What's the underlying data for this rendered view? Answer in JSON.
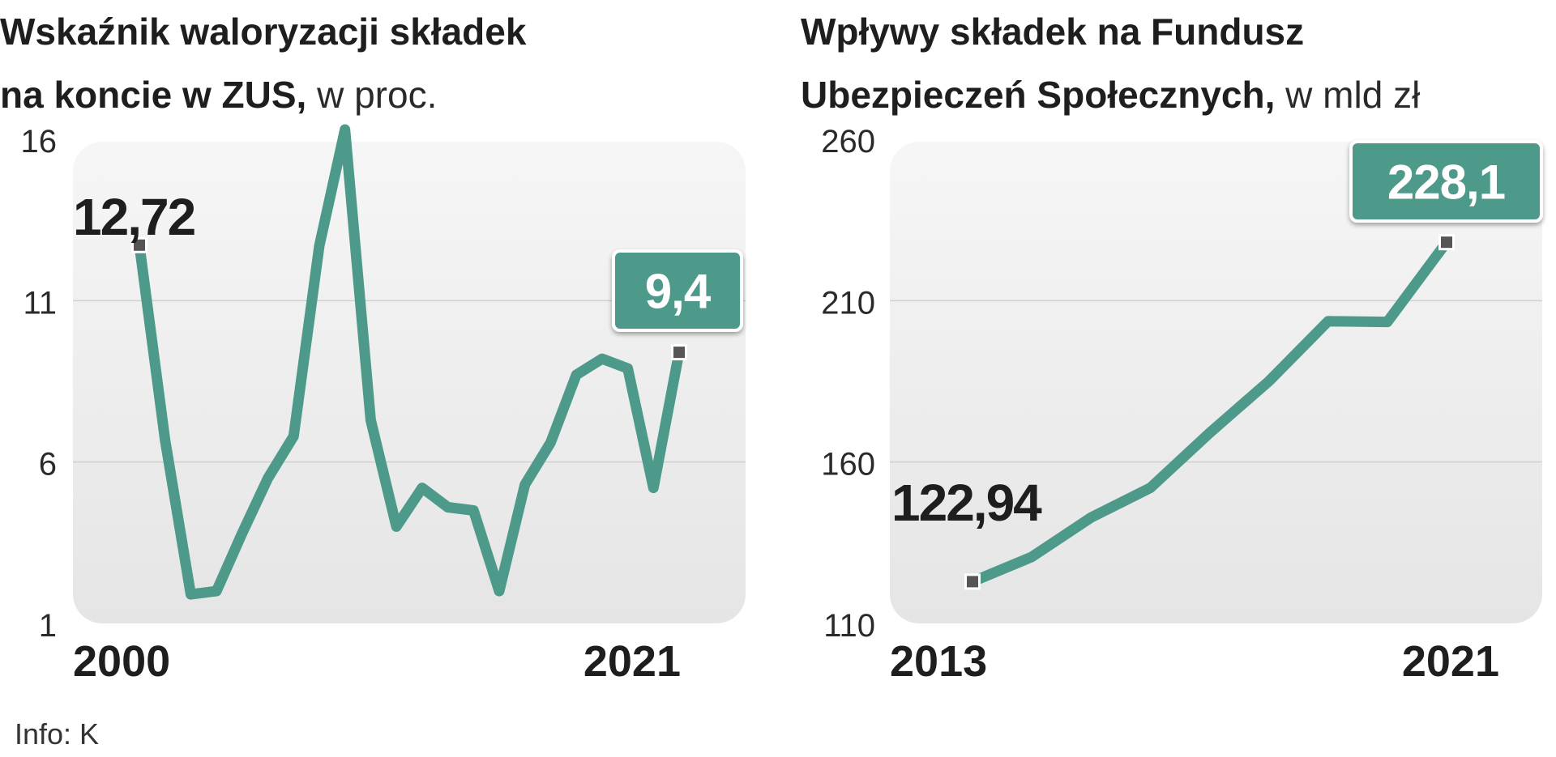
{
  "source": "Info: K",
  "colors": {
    "line": "#4e9a8a",
    "marker": "#555555",
    "panel_top": "#f6f6f6",
    "panel_bottom": "#e5e5e5",
    "grid": "#d0d0d0"
  },
  "chart_data": [
    {
      "type": "line",
      "title": "Wskaźnik waloryzacji składek na koncie w ZUS,",
      "title_line1": "Wskaźnik waloryzacji składek",
      "title_line2": "na koncie w ZUS,",
      "unit": "w proc.",
      "x": [
        2000,
        2001,
        2002,
        2003,
        2004,
        2005,
        2006,
        2007,
        2008,
        2009,
        2010,
        2011,
        2012,
        2013,
        2014,
        2015,
        2016,
        2017,
        2018,
        2019,
        2020,
        2021
      ],
      "values": [
        12.72,
        6.68,
        1.9,
        2.0,
        3.8,
        5.5,
        6.8,
        12.7,
        16.3,
        7.3,
        4.0,
        5.2,
        4.6,
        4.5,
        2.0,
        5.3,
        6.6,
        8.7,
        9.2,
        8.9,
        5.2,
        9.4
      ],
      "ylim": [
        1,
        16
      ],
      "yticks": [
        "16",
        "11",
        "6",
        "1"
      ],
      "ytick_values": [
        16,
        11,
        6,
        1
      ],
      "xtick_labels": [
        "2000",
        "2021"
      ],
      "start_label": "12,72",
      "end_label": "9,4",
      "grid": true
    },
    {
      "type": "line",
      "title": "Wpływy składek na Fundusz Ubezpieczeń Społecznych,",
      "title_line1": "Wpływy składek na Fundusz",
      "title_line2": "Ubezpieczeń Społecznych,",
      "unit": "w mld zł",
      "x": [
        2013,
        2014,
        2015,
        2016,
        2017,
        2018,
        2019,
        2020,
        2021
      ],
      "values": [
        122.94,
        130.6,
        142.8,
        152.0,
        169.0,
        185.0,
        203.6,
        203.4,
        228.1
      ],
      "ylim": [
        110,
        260
      ],
      "yticks": [
        "260",
        "210",
        "160",
        "110"
      ],
      "ytick_values": [
        260,
        210,
        160,
        110
      ],
      "xtick_labels": [
        "2013",
        "2021"
      ],
      "start_label": "122,94",
      "end_label": "228,1",
      "grid": true
    }
  ]
}
